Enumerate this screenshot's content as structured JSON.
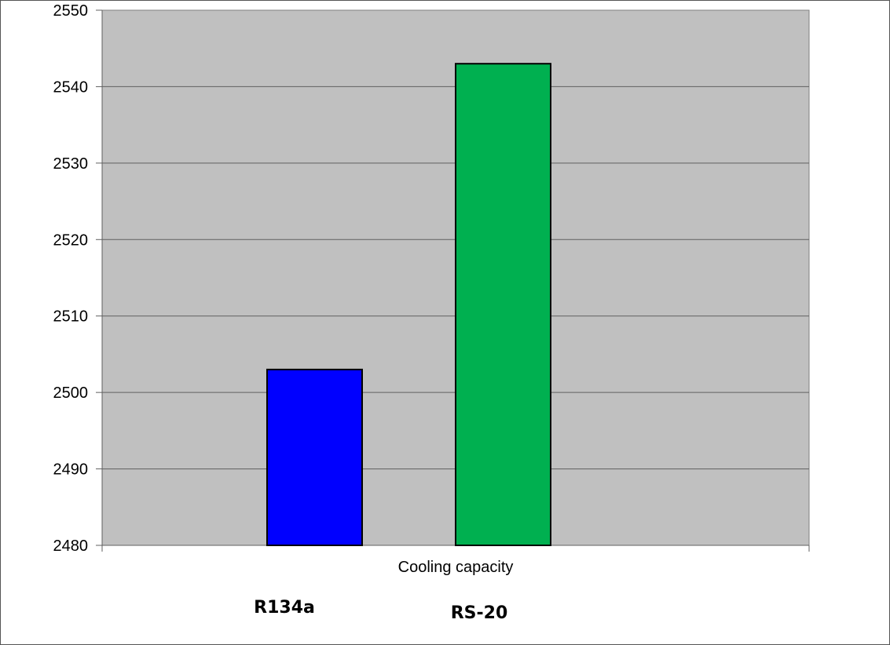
{
  "chart_data": {
    "type": "bar",
    "title": "",
    "xlabel": "Cooling capacity",
    "ylabel": "",
    "ylim": [
      2480,
      2550
    ],
    "yticks": [
      2480,
      2490,
      2500,
      2510,
      2520,
      2530,
      2540,
      2550
    ],
    "grid": true,
    "categories": [
      "R134a",
      "RS-20"
    ],
    "values": [
      2503,
      2543
    ],
    "colors": [
      "#0000ff",
      "#00b050"
    ],
    "plot_background": "#c0c0c0",
    "legend": "below"
  }
}
